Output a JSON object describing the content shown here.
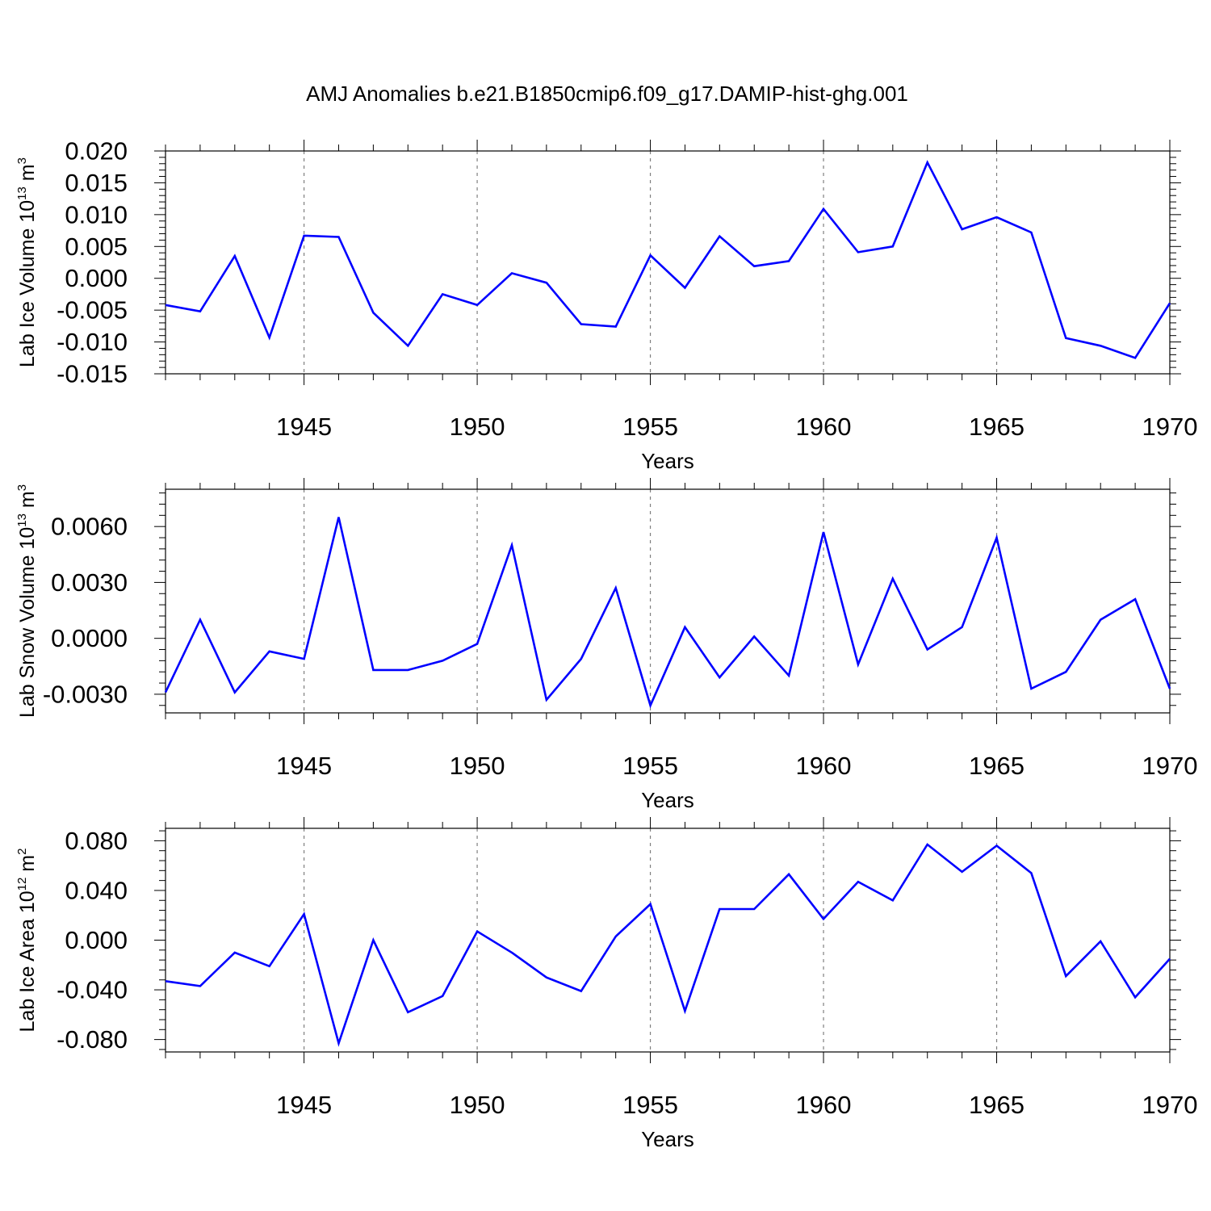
{
  "figure_title": "AMJ Anomalies b.e21.B1850cmip6.f09_g17.DAMIP-hist-ghg.001",
  "line_color": "#0000ff",
  "chart_data": [
    {
      "type": "line",
      "id": "ice-volume",
      "title": "",
      "ylabel_main": "Lab Ice Volume 10",
      "ylabel_exp": "13",
      "ylabel_tail": " m",
      "ylabel_unit_exp": "3",
      "xlabel": "Years",
      "xlim": [
        1941,
        1970
      ],
      "ylim": [
        -0.015,
        0.02
      ],
      "yticks": [
        "-0.015",
        "-0.010",
        "-0.005",
        "0.000",
        "0.005",
        "0.010",
        "0.015",
        "0.020"
      ],
      "ytick_values": [
        -0.015,
        -0.01,
        -0.005,
        0.0,
        0.005,
        0.01,
        0.015,
        0.02
      ],
      "xticks": [
        "1945",
        "1950",
        "1955",
        "1960",
        "1965",
        "1970"
      ],
      "xtick_values": [
        1945,
        1950,
        1955,
        1960,
        1965,
        1970
      ],
      "ref_lines": [
        1945,
        1950,
        1955,
        1960,
        1965
      ],
      "x": [
        1941,
        1942,
        1943,
        1944,
        1945,
        1946,
        1947,
        1948,
        1949,
        1950,
        1951,
        1952,
        1953,
        1954,
        1955,
        1956,
        1957,
        1958,
        1959,
        1960,
        1961,
        1962,
        1963,
        1964,
        1965,
        1966,
        1967,
        1968,
        1969,
        1970
      ],
      "y": [
        -0.0042,
        -0.0052,
        0.0035,
        -0.0093,
        0.0067,
        0.0065,
        -0.0054,
        -0.0106,
        -0.0025,
        -0.0042,
        0.0008,
        -0.0007,
        -0.0072,
        -0.0076,
        0.0036,
        -0.0015,
        0.0066,
        0.0019,
        0.0027,
        0.0109,
        0.0041,
        0.005,
        0.0182,
        0.0077,
        0.0096,
        0.0072,
        -0.0094,
        -0.0106,
        -0.0125,
        -0.0039
      ]
    },
    {
      "type": "line",
      "id": "snow-volume",
      "title": "",
      "ylabel_main": "Lab Snow Volume 10",
      "ylabel_exp": "13",
      "ylabel_tail": " m",
      "ylabel_unit_exp": "3",
      "xlabel": "Years",
      "xlim": [
        1941,
        1970
      ],
      "ylim": [
        -0.004,
        0.008
      ],
      "yticks": [
        "-0.0030",
        "0.0000",
        "0.0030",
        "0.0060"
      ],
      "ytick_values": [
        -0.003,
        0.0,
        0.003,
        0.006
      ],
      "xticks": [
        "1945",
        "1950",
        "1955",
        "1960",
        "1965",
        "1970"
      ],
      "xtick_values": [
        1945,
        1950,
        1955,
        1960,
        1965,
        1970
      ],
      "ref_lines": [
        1945,
        1950,
        1955,
        1960,
        1965
      ],
      "x": [
        1941,
        1942,
        1943,
        1944,
        1945,
        1946,
        1947,
        1948,
        1949,
        1950,
        1951,
        1952,
        1953,
        1954,
        1955,
        1956,
        1957,
        1958,
        1959,
        1960,
        1961,
        1962,
        1963,
        1964,
        1965,
        1966,
        1967,
        1968,
        1969,
        1970
      ],
      "y": [
        -0.0029,
        0.001,
        -0.0029,
        -0.0007,
        -0.0011,
        0.0065,
        -0.0017,
        -0.0017,
        -0.0012,
        -0.0003,
        0.005,
        -0.0033,
        -0.0011,
        0.0027,
        -0.0036,
        0.0006,
        -0.0021,
        0.0001,
        -0.002,
        0.0057,
        -0.0014,
        0.0032,
        -0.0006,
        0.0006,
        0.0054,
        -0.0027,
        -0.0018,
        0.001,
        0.0021,
        -0.0027
      ]
    },
    {
      "type": "line",
      "id": "ice-area",
      "title": "",
      "ylabel_main": "Lab Ice Area 10",
      "ylabel_exp": "12",
      "ylabel_tail": " m",
      "ylabel_unit_exp": "2",
      "xlabel": "Years",
      "xlim": [
        1941,
        1970
      ],
      "ylim": [
        -0.09,
        0.09
      ],
      "yticks": [
        "-0.080",
        "-0.040",
        "0.000",
        "0.040",
        "0.080"
      ],
      "ytick_values": [
        -0.08,
        -0.04,
        0.0,
        0.04,
        0.08
      ],
      "xticks": [
        "1945",
        "1950",
        "1955",
        "1960",
        "1965",
        "1970"
      ],
      "xtick_values": [
        1945,
        1950,
        1955,
        1960,
        1965,
        1970
      ],
      "ref_lines": [
        1945,
        1950,
        1955,
        1960,
        1965
      ],
      "x": [
        1941,
        1942,
        1943,
        1944,
        1945,
        1946,
        1947,
        1948,
        1949,
        1950,
        1951,
        1952,
        1953,
        1954,
        1955,
        1956,
        1957,
        1958,
        1959,
        1960,
        1961,
        1962,
        1963,
        1964,
        1965,
        1966,
        1967,
        1968,
        1969,
        1970
      ],
      "y": [
        -0.033,
        -0.037,
        -0.01,
        -0.021,
        0.021,
        -0.083,
        0.0,
        -0.058,
        -0.045,
        0.007,
        -0.01,
        -0.03,
        -0.041,
        0.003,
        0.029,
        -0.057,
        0.025,
        0.025,
        0.053,
        0.017,
        0.047,
        0.032,
        0.077,
        0.055,
        0.076,
        0.054,
        -0.029,
        -0.001,
        -0.046,
        -0.015
      ]
    }
  ]
}
